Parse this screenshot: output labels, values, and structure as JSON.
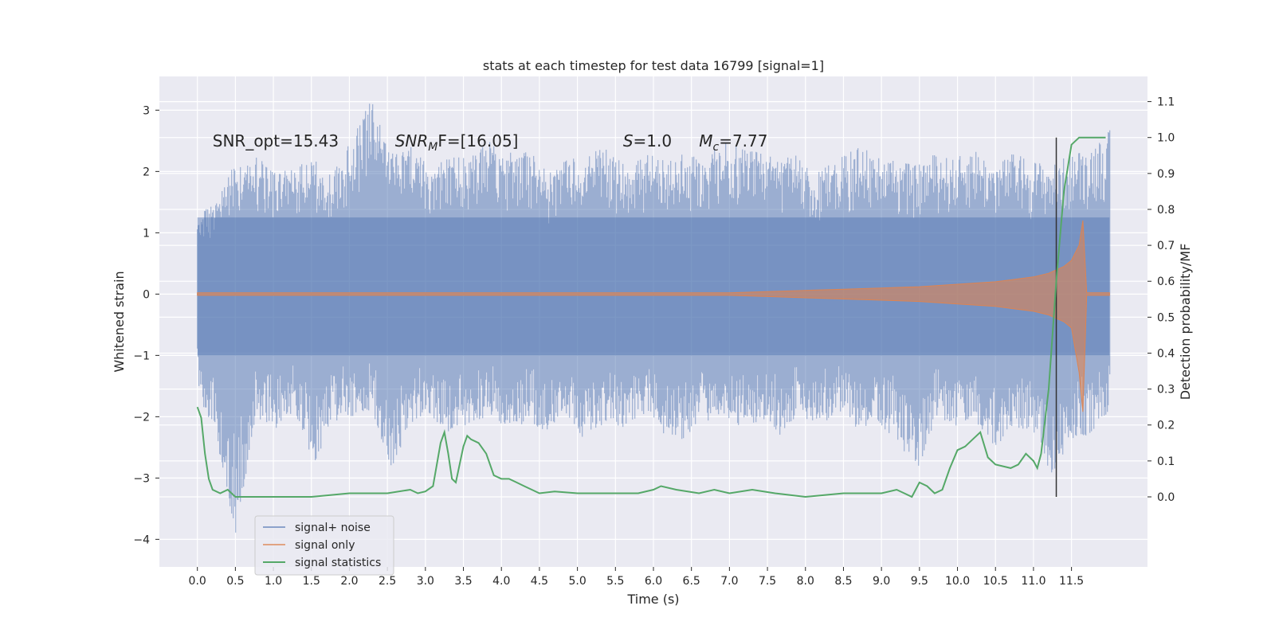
{
  "chart_data": {
    "type": "line",
    "title": "stats at each timestep for test data 16799 [signal=1]",
    "xlabel": "Time (s)",
    "ylabel": "Whitened strain",
    "y2label": "Detection probability/MF",
    "xlim": [
      -0.5,
      12.5
    ],
    "ylim": [
      -4.45,
      3.55
    ],
    "y2lim": [
      -0.195,
      1.17
    ],
    "x_ticks": [
      "0.0",
      "0.5",
      "1.0",
      "1.5",
      "2.0",
      "2.5",
      "3.0",
      "3.5",
      "4.0",
      "4.5",
      "5.0",
      "5.5",
      "6.0",
      "6.5",
      "7.0",
      "7.5",
      "8.0",
      "8.5",
      "9.0",
      "9.5",
      "10.0",
      "10.5",
      "11.0",
      "11.5"
    ],
    "y_ticks": [
      "3",
      "2",
      "1",
      "0",
      "−1",
      "−2",
      "−3",
      "−4"
    ],
    "y2_ticks": [
      "1.1",
      "1.0",
      "0.9",
      "0.8",
      "0.7",
      "0.6",
      "0.5",
      "0.4",
      "0.3",
      "0.2",
      "0.1",
      "0.0"
    ],
    "grid": true,
    "legend_position": "lower-left",
    "colors": {
      "noise": "#4c72b0",
      "signal": "#dd8452",
      "stats": "#55a868",
      "marker": "#333333",
      "background": "#eaeaf2"
    },
    "annotations": [
      {
        "text": "SNR_opt=15.43",
        "x": 0.2,
        "y": 2.5
      },
      {
        "text": "SNR",
        "sub": "M",
        "rest": "F=[16.05]",
        "x": 2.6,
        "y": 2.5
      },
      {
        "text": "S",
        "rest": "=1.0",
        "x": 5.6,
        "y": 2.5
      },
      {
        "text": "M",
        "sub": "c",
        "rest": "=7.77",
        "x": 6.6,
        "y": 2.5
      }
    ],
    "vertical_line": {
      "x": 11.3,
      "y2_from": 0.0,
      "y2_to": 1.0
    },
    "series": [
      {
        "name": "signal+ noise",
        "axis": "left",
        "x_range": [
          0.0,
          12.0
        ],
        "envelope_upper": [
          1.3,
          1.5,
          2.2,
          2.3,
          2.0,
          2.1,
          2.2,
          2.0,
          2.6,
          3.2,
          2.3,
          2.4,
          2.1,
          2.3,
          2.2,
          2.5,
          2.3,
          2.4,
          2.0,
          2.2,
          2.3,
          2.4,
          2.1,
          2.3,
          2.2,
          2.3,
          2.2,
          2.5,
          2.4,
          2.3,
          2.2,
          2.3,
          2.0,
          2.2,
          2.4,
          2.3,
          2.2,
          2.1,
          2.3,
          2.2,
          2.4,
          2.1,
          2.3,
          2.2,
          2.1,
          2.3,
          2.4,
          2.7
        ],
        "envelope_lower": [
          -1.6,
          -2.4,
          -4.0,
          -2.0,
          -2.2,
          -1.9,
          -2.8,
          -2.1,
          -2.0,
          -1.9,
          -2.9,
          -2.1,
          -2.0,
          -2.3,
          -2.1,
          -2.0,
          -2.2,
          -2.1,
          -2.3,
          -2.0,
          -2.4,
          -2.1,
          -2.2,
          -2.0,
          -2.3,
          -2.4,
          -2.1,
          -2.0,
          -2.2,
          -2.1,
          -2.3,
          -2.0,
          -2.1,
          -2.0,
          -2.2,
          -2.1,
          -2.4,
          -3.0,
          -2.1,
          -2.2,
          -2.0,
          -2.6,
          -2.3,
          -2.2,
          -3.0,
          -2.4,
          -2.3,
          -1.9
        ]
      },
      {
        "name": "signal only",
        "axis": "left",
        "x": [
          0.0,
          7.0,
          7.5,
          8.0,
          8.5,
          9.0,
          9.5,
          10.0,
          10.5,
          11.0,
          11.2,
          11.4,
          11.5,
          11.6,
          11.65,
          11.7,
          12.0
        ],
        "amplitude": [
          0.02,
          0.02,
          0.04,
          0.06,
          0.08,
          0.1,
          0.12,
          0.16,
          0.2,
          0.28,
          0.34,
          0.45,
          0.55,
          0.8,
          1.2,
          0.02,
          0.02
        ]
      },
      {
        "name": "signal statistics",
        "axis": "right",
        "x": [
          0.0,
          0.05,
          0.1,
          0.15,
          0.2,
          0.3,
          0.4,
          0.5,
          0.7,
          1.0,
          1.5,
          2.0,
          2.5,
          2.8,
          2.9,
          3.0,
          3.1,
          3.2,
          3.25,
          3.3,
          3.35,
          3.4,
          3.5,
          3.55,
          3.6,
          3.7,
          3.8,
          3.9,
          4.0,
          4.1,
          4.2,
          4.3,
          4.4,
          4.5,
          4.7,
          5.0,
          5.5,
          5.8,
          6.0,
          6.1,
          6.3,
          6.6,
          6.8,
          7.0,
          7.3,
          7.6,
          8.0,
          8.5,
          9.0,
          9.2,
          9.3,
          9.4,
          9.5,
          9.6,
          9.7,
          9.8,
          9.9,
          10.0,
          10.1,
          10.2,
          10.3,
          10.4,
          10.5,
          10.7,
          10.8,
          10.9,
          11.0,
          11.05,
          11.1,
          11.2,
          11.3,
          11.4,
          11.5,
          11.6,
          11.7,
          11.8,
          11.95
        ],
        "values": [
          0.25,
          0.22,
          0.12,
          0.05,
          0.02,
          0.01,
          0.02,
          0.0,
          0.0,
          0.0,
          0.0,
          0.01,
          0.01,
          0.02,
          0.01,
          0.015,
          0.03,
          0.15,
          0.18,
          0.12,
          0.05,
          0.04,
          0.14,
          0.17,
          0.16,
          0.15,
          0.12,
          0.06,
          0.05,
          0.05,
          0.04,
          0.03,
          0.02,
          0.01,
          0.015,
          0.01,
          0.01,
          0.01,
          0.02,
          0.03,
          0.02,
          0.01,
          0.02,
          0.01,
          0.02,
          0.01,
          0.0,
          0.01,
          0.01,
          0.02,
          0.01,
          0.0,
          0.04,
          0.03,
          0.01,
          0.02,
          0.08,
          0.13,
          0.14,
          0.16,
          0.18,
          0.11,
          0.09,
          0.08,
          0.09,
          0.12,
          0.1,
          0.08,
          0.12,
          0.3,
          0.6,
          0.85,
          0.98,
          1.0,
          1.0,
          1.0,
          1.0
        ]
      }
    ]
  }
}
